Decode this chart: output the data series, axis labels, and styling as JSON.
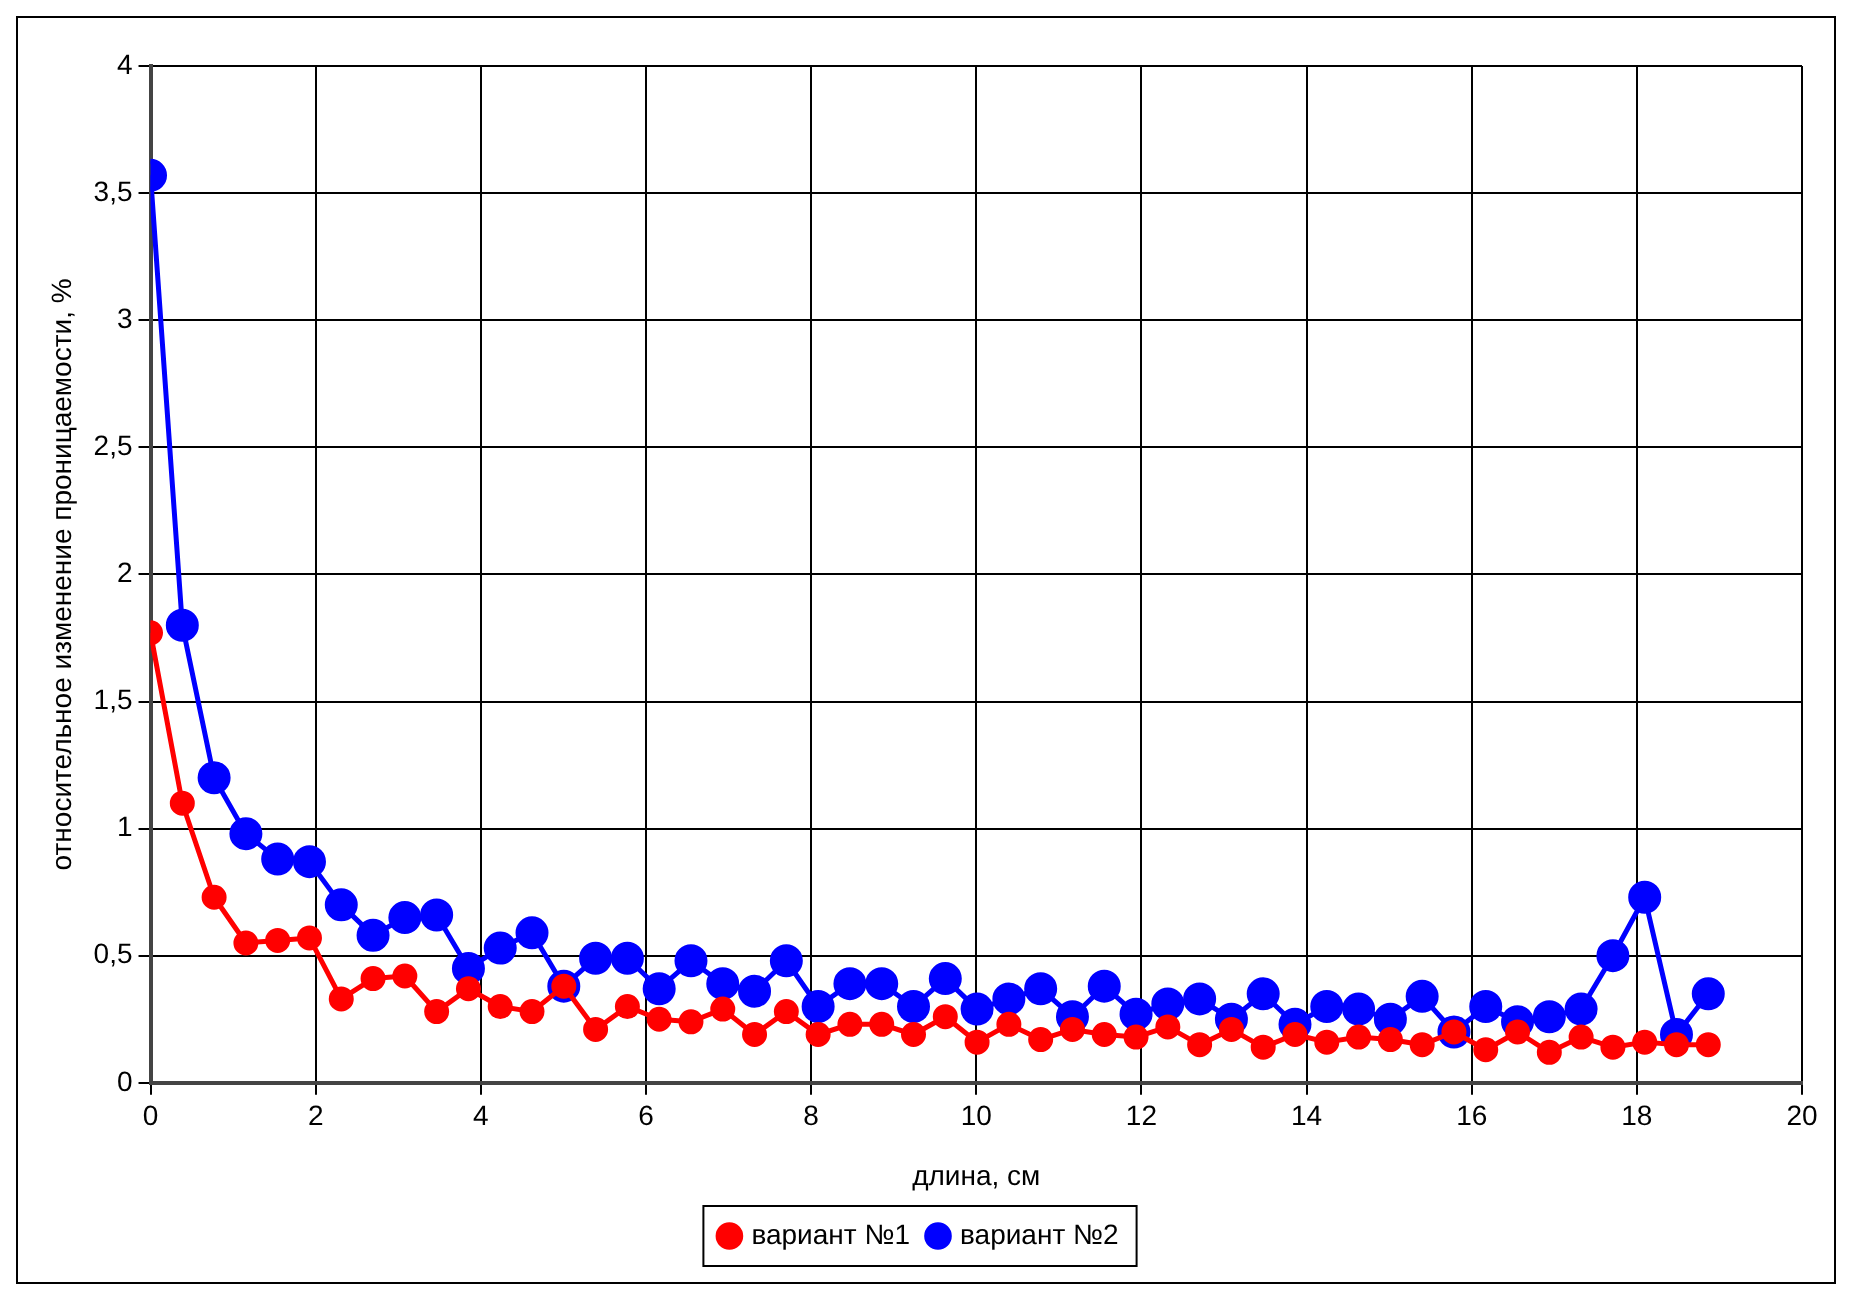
{
  "chart_data": {
    "type": "line",
    "xlabel": "длина, см",
    "ylabel": "относительное изменение проницаемости, %",
    "x": [
      0,
      0.385,
      0.77,
      1.155,
      1.54,
      1.925,
      2.31,
      2.695,
      3.08,
      3.465,
      3.85,
      4.235,
      4.62,
      5.005,
      5.39,
      5.775,
      6.16,
      6.545,
      6.93,
      7.315,
      7.7,
      8.085,
      8.47,
      8.855,
      9.24,
      9.625,
      10.01,
      10.395,
      10.78,
      11.165,
      11.55,
      11.935,
      12.32,
      12.705,
      13.09,
      13.475,
      13.86,
      14.245,
      14.63,
      15.015,
      15.4,
      15.785,
      16.17,
      16.555,
      16.94,
      17.325,
      17.71,
      18.095,
      18.48,
      18.865
    ],
    "series": [
      {
        "name": "вариант №1",
        "color": "#ff0000",
        "values": [
          1.77,
          1.1,
          0.73,
          0.55,
          0.56,
          0.57,
          0.33,
          0.41,
          0.42,
          0.28,
          0.37,
          0.3,
          0.28,
          0.38,
          0.21,
          0.3,
          0.25,
          0.24,
          0.29,
          0.19,
          0.28,
          0.19,
          0.23,
          0.23,
          0.19,
          0.26,
          0.16,
          0.23,
          0.17,
          0.21,
          0.19,
          0.18,
          0.22,
          0.15,
          0.21,
          0.14,
          0.19,
          0.16,
          0.18,
          0.17,
          0.15,
          0.2,
          0.13,
          0.2,
          0.12,
          0.18,
          0.14,
          0.16,
          0.15,
          0.15
        ]
      },
      {
        "name": "вариант №2",
        "color": "#0000ff",
        "values": [
          3.57,
          1.8,
          1.2,
          0.98,
          0.88,
          0.87,
          0.7,
          0.58,
          0.65,
          0.66,
          0.45,
          0.53,
          0.59,
          0.38,
          0.49,
          0.49,
          0.37,
          0.48,
          0.39,
          0.36,
          0.48,
          0.3,
          0.39,
          0.39,
          0.3,
          0.41,
          0.29,
          0.33,
          0.37,
          0.26,
          0.38,
          0.27,
          0.31,
          0.33,
          0.25,
          0.35,
          0.23,
          0.3,
          0.29,
          0.25,
          0.34,
          0.2,
          0.3,
          0.24,
          0.26,
          0.29,
          0.5,
          0.73,
          0.19,
          0.35
        ]
      }
    ],
    "xlim": [
      0,
      20
    ],
    "xticks": [
      0,
      2,
      4,
      6,
      8,
      10,
      12,
      14,
      16,
      18,
      20
    ],
    "ylim": [
      0,
      4
    ],
    "yticks": [
      0,
      {
        "value": 0.5,
        "label": "0,5"
      },
      1,
      {
        "value": 1.5,
        "label": "1,5"
      },
      2,
      {
        "value": 2.5,
        "label": "2,5"
      },
      3,
      {
        "value": 3.5,
        "label": "3,5"
      },
      4
    ],
    "grid": true,
    "legend": "bottom",
    "marker": "circle",
    "line_style": "solid"
  }
}
